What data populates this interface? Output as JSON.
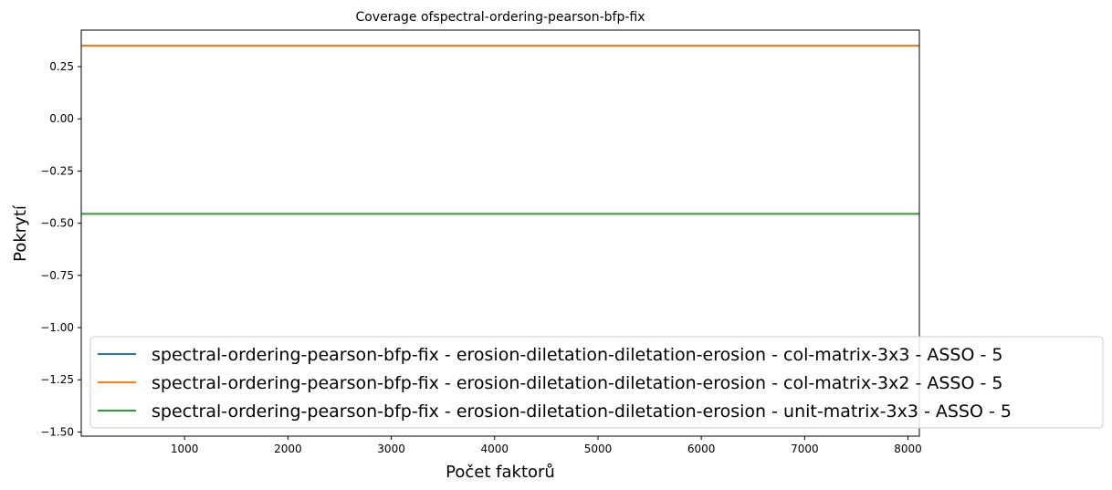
{
  "chart_data": {
    "type": "line",
    "title": "Coverage ofspectral-ordering-pearson-bfp-fix",
    "xlabel": "Počet faktorů",
    "ylabel": "Pokrytí",
    "xlim": [
      0,
      8110
    ],
    "ylim": [
      -1.52,
      0.425
    ],
    "xticks": [
      1000,
      2000,
      3000,
      4000,
      5000,
      6000,
      7000,
      8000
    ],
    "yticks": [
      0.25,
      0.0,
      -0.25,
      -0.5,
      -0.75,
      -1.0,
      -1.25,
      -1.5
    ],
    "ytick_labels": [
      "0.25",
      "0.00",
      "−0.25",
      "−0.50",
      "−0.75",
      "−1.00",
      "−1.25",
      "−1.50"
    ],
    "grid": false,
    "legend_position": "lower-right",
    "series": [
      {
        "name": "spectral-ordering-pearson-bfp-fix - erosion-diletation-diletation-erosion - col-matrix-3x3 - ASSO - 5",
        "color": "#1f77b4",
        "x": [
          1,
          8110
        ],
        "y": [
          0.35,
          0.35
        ]
      },
      {
        "name": "spectral-ordering-pearson-bfp-fix - erosion-diletation-diletation-erosion - col-matrix-3x2 - ASSO - 5",
        "color": "#ff7f0e",
        "x": [
          1,
          8110
        ],
        "y": [
          0.35,
          0.35
        ]
      },
      {
        "name": "spectral-ordering-pearson-bfp-fix - erosion-diletation-diletation-erosion - unit-matrix-3x3 - ASSO - 5",
        "color": "#2ca02c",
        "x": [
          1,
          8110
        ],
        "y": [
          -0.455,
          -0.455
        ]
      }
    ]
  }
}
